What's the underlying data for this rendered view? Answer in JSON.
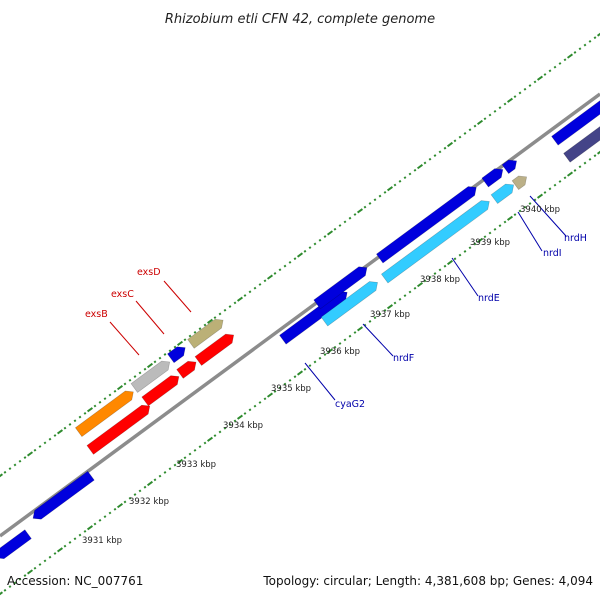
{
  "title": "Rhizobium etli CFN 42, complete genome",
  "footer": {
    "accession": "Accession: NC_007761",
    "summary": "Topology: circular; Length: 4,381,608 bp; Genes: 4,094"
  },
  "colors": {
    "backbone": "#8c8c8c",
    "tick_dot": "#2e8b2e",
    "red_label": "#cc0000",
    "blue_label": "#0000aa",
    "leader": "#cc0000",
    "leader_blue": "#0000aa"
  },
  "scale_ticks": [
    {
      "label": "3931 kbp"
    },
    {
      "label": "3932 kbp"
    },
    {
      "label": "3933 kbp"
    },
    {
      "label": "3934 kbp"
    },
    {
      "label": "3935 kbp"
    },
    {
      "label": "3936 kbp"
    },
    {
      "label": "3937 kbp"
    },
    {
      "label": "3938 kbp"
    },
    {
      "label": "3939 kbp"
    },
    {
      "label": "3940 kbp"
    }
  ],
  "gene_labels": [
    {
      "text": "exsD",
      "color": "red"
    },
    {
      "text": "exsC",
      "color": "red"
    },
    {
      "text": "exsB",
      "color": "red"
    },
    {
      "text": "cyaG2",
      "color": "blue"
    },
    {
      "text": "nrdF",
      "color": "blue"
    },
    {
      "text": "nrdE",
      "color": "blue"
    },
    {
      "text": "nrdI",
      "color": "blue"
    },
    {
      "text": "nrdH",
      "color": "blue"
    }
  ]
}
